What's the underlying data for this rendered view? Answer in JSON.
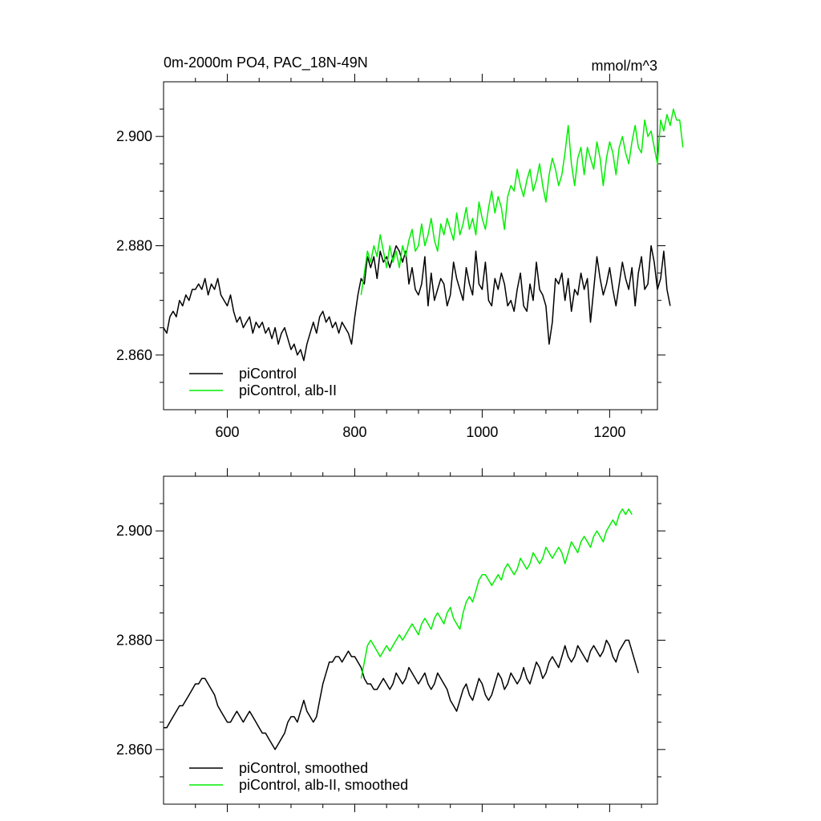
{
  "figure": {
    "title_left": "0m-2000m PO4, PAC_18N-49N",
    "title_right": "mmol/m^3"
  },
  "chart_data": [
    {
      "type": "line",
      "title": "0m-2000m PO4, PAC_18N-49N",
      "units": "mmol/m^3",
      "xlim": [
        500,
        1275
      ],
      "ylim": [
        2.85,
        2.91
      ],
      "xticks": [
        600,
        800,
        1000,
        1200
      ],
      "xtick_labels": [
        "600",
        "800",
        "1000",
        "1200"
      ],
      "yticks": [
        2.86,
        2.88,
        2.9
      ],
      "ytick_labels": [
        "2.860",
        "2.880",
        "2.900"
      ],
      "legend_position": "bottom-left",
      "series": [
        {
          "name": "piControl",
          "color": "#000000",
          "x_start": 500,
          "x_step": 5,
          "values": [
            2.865,
            2.864,
            2.867,
            2.868,
            2.867,
            2.87,
            2.869,
            2.871,
            2.87,
            2.872,
            2.872,
            2.873,
            2.872,
            2.874,
            2.871,
            2.873,
            2.872,
            2.874,
            2.871,
            2.87,
            2.869,
            2.871,
            2.868,
            2.866,
            2.867,
            2.865,
            2.866,
            2.867,
            2.864,
            2.866,
            2.865,
            2.866,
            2.864,
            2.865,
            2.863,
            2.865,
            2.862,
            2.864,
            2.865,
            2.863,
            2.861,
            2.862,
            2.86,
            2.861,
            2.859,
            2.862,
            2.864,
            2.866,
            2.864,
            2.867,
            2.868,
            2.866,
            2.867,
            2.865,
            2.866,
            2.864,
            2.866,
            2.865,
            2.864,
            2.862,
            2.867,
            2.871,
            2.874,
            2.873,
            2.878,
            2.876,
            2.878,
            2.874,
            2.879,
            2.877,
            2.878,
            2.876,
            2.878,
            2.88,
            2.879,
            2.877,
            2.879,
            2.873,
            2.876,
            2.872,
            2.871,
            2.873,
            2.878,
            2.869,
            2.875,
            2.87,
            2.872,
            2.874,
            2.873,
            2.869,
            2.871,
            2.877,
            2.874,
            2.872,
            2.87,
            2.876,
            2.873,
            2.871,
            2.879,
            2.873,
            2.872,
            2.877,
            2.87,
            2.869,
            2.874,
            2.872,
            2.875,
            2.873,
            2.869,
            2.87,
            2.868,
            2.872,
            2.875,
            2.869,
            2.868,
            2.873,
            2.87,
            2.877,
            2.872,
            2.871,
            2.869,
            2.862,
            2.866,
            2.874,
            2.873,
            2.875,
            2.87,
            2.874,
            2.868,
            2.872,
            2.871,
            2.875,
            2.872,
            2.874,
            2.866,
            2.872,
            2.878,
            2.874,
            2.871,
            2.873,
            2.876,
            2.872,
            2.869,
            2.873,
            2.877,
            2.874,
            2.872,
            2.876,
            2.869,
            2.875,
            2.878,
            2.872,
            2.873,
            2.88,
            2.877,
            2.872,
            2.874,
            2.879,
            2.872,
            2.869
          ]
        },
        {
          "name": "piControl, alb-II",
          "color": "#00ee00",
          "x_start": 810,
          "x_step": 5,
          "values": [
            2.871,
            2.875,
            2.879,
            2.877,
            2.88,
            2.878,
            2.882,
            2.879,
            2.876,
            2.88,
            2.877,
            2.879,
            2.876,
            2.88,
            2.878,
            2.881,
            2.883,
            2.879,
            2.88,
            2.884,
            2.88,
            2.882,
            2.885,
            2.881,
            2.879,
            2.884,
            2.882,
            2.885,
            2.883,
            2.881,
            2.886,
            2.882,
            2.884,
            2.887,
            2.883,
            2.885,
            2.882,
            2.888,
            2.885,
            2.883,
            2.887,
            2.89,
            2.886,
            2.889,
            2.887,
            2.883,
            2.889,
            2.891,
            2.89,
            2.894,
            2.891,
            2.889,
            2.892,
            2.894,
            2.89,
            2.892,
            2.895,
            2.891,
            2.888,
            2.893,
            2.896,
            2.894,
            2.891,
            2.893,
            2.897,
            2.902,
            2.895,
            2.891,
            2.896,
            2.898,
            2.893,
            2.898,
            2.896,
            2.894,
            2.899,
            2.896,
            2.891,
            2.896,
            2.899,
            2.897,
            2.893,
            2.898,
            2.9,
            2.897,
            2.895,
            2.899,
            2.902,
            2.898,
            2.897,
            2.903,
            2.9,
            2.901,
            2.898,
            2.895,
            2.903,
            2.901,
            2.904,
            2.902,
            2.905,
            2.903,
            2.903,
            2.898
          ]
        }
      ]
    },
    {
      "type": "line",
      "title": "",
      "xlim": [
        500,
        1275
      ],
      "ylim": [
        2.85,
        2.91
      ],
      "xticks": [
        600,
        800,
        1000,
        1200
      ],
      "yticks": [
        2.86,
        2.88,
        2.9
      ],
      "ytick_labels": [
        "2.860",
        "2.880",
        "2.900"
      ],
      "legend_position": "bottom-left",
      "series": [
        {
          "name": "piControl, smoothed",
          "color": "#000000",
          "x_start": 500,
          "x_step": 5,
          "values": [
            2.864,
            2.864,
            2.865,
            2.866,
            2.867,
            2.868,
            2.868,
            2.869,
            2.87,
            2.871,
            2.872,
            2.872,
            2.873,
            2.873,
            2.872,
            2.871,
            2.87,
            2.868,
            2.867,
            2.866,
            2.865,
            2.865,
            2.866,
            2.867,
            2.866,
            2.865,
            2.866,
            2.867,
            2.866,
            2.865,
            2.864,
            2.863,
            2.863,
            2.862,
            2.861,
            2.86,
            2.861,
            2.862,
            2.863,
            2.865,
            2.866,
            2.866,
            2.865,
            2.867,
            2.869,
            2.867,
            2.866,
            2.865,
            2.866,
            2.869,
            2.872,
            2.874,
            2.876,
            2.876,
            2.877,
            2.877,
            2.876,
            2.877,
            2.878,
            2.877,
            2.877,
            2.876,
            2.875,
            2.873,
            2.872,
            2.872,
            2.871,
            2.871,
            2.872,
            2.873,
            2.872,
            2.871,
            2.872,
            2.874,
            2.873,
            2.872,
            2.873,
            2.875,
            2.874,
            2.873,
            2.872,
            2.873,
            2.874,
            2.872,
            2.871,
            2.872,
            2.874,
            2.873,
            2.872,
            2.871,
            2.869,
            2.868,
            2.867,
            2.869,
            2.871,
            2.872,
            2.87,
            2.869,
            2.871,
            2.873,
            2.872,
            2.87,
            2.869,
            2.87,
            2.872,
            2.874,
            2.873,
            2.871,
            2.872,
            2.874,
            2.873,
            2.872,
            2.873,
            2.875,
            2.873,
            2.872,
            2.874,
            2.876,
            2.875,
            2.873,
            2.874,
            2.876,
            2.877,
            2.876,
            2.875,
            2.877,
            2.879,
            2.877,
            2.876,
            2.877,
            2.879,
            2.878,
            2.877,
            2.876,
            2.878,
            2.879,
            2.878,
            2.877,
            2.878,
            2.88,
            2.879,
            2.877,
            2.876,
            2.878,
            2.879,
            2.88,
            2.88,
            2.878,
            2.876,
            2.874
          ]
        },
        {
          "name": "piControl, alb-II, smoothed",
          "color": "#00ee00",
          "x_start": 810,
          "x_step": 5,
          "values": [
            2.873,
            2.876,
            2.879,
            2.88,
            2.879,
            2.878,
            2.877,
            2.878,
            2.879,
            2.878,
            2.879,
            2.88,
            2.881,
            2.88,
            2.881,
            2.882,
            2.883,
            2.882,
            2.881,
            2.883,
            2.884,
            2.883,
            2.882,
            2.884,
            2.885,
            2.884,
            2.883,
            2.885,
            2.886,
            2.884,
            2.883,
            2.882,
            2.885,
            2.887,
            2.888,
            2.887,
            2.889,
            2.891,
            2.892,
            2.892,
            2.891,
            2.89,
            2.891,
            2.892,
            2.891,
            2.893,
            2.894,
            2.893,
            2.892,
            2.893,
            2.895,
            2.894,
            2.893,
            2.894,
            2.896,
            2.895,
            2.894,
            2.895,
            2.897,
            2.896,
            2.895,
            2.896,
            2.897,
            2.896,
            2.894,
            2.896,
            2.898,
            2.897,
            2.896,
            2.898,
            2.899,
            2.898,
            2.897,
            2.899,
            2.9,
            2.899,
            2.898,
            2.9,
            2.901,
            2.902,
            2.901,
            2.903,
            2.904,
            2.903,
            2.904,
            2.903
          ]
        }
      ]
    }
  ]
}
